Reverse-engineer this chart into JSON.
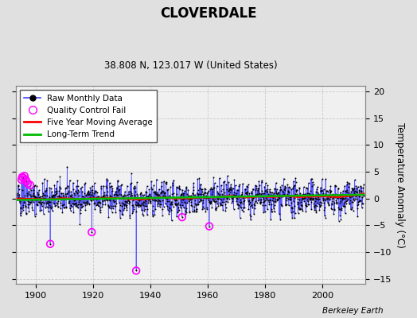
{
  "title": "CLOVERDALE",
  "subtitle": "38.808 N, 123.017 W (United States)",
  "ylabel": "Temperature Anomaly (°C)",
  "credit": "Berkeley Earth",
  "ylim": [
    -16,
    21
  ],
  "xlim": [
    1893,
    2015
  ],
  "yticks": [
    -15,
    -10,
    -5,
    0,
    5,
    10,
    15,
    20
  ],
  "xticks": [
    1900,
    1920,
    1940,
    1960,
    1980,
    2000
  ],
  "bg_color": "#f0f0f0",
  "grid_color": "#c8c8c8",
  "fig_color": "#e0e0e0",
  "raw_line_color": "#4444ff",
  "raw_dot_color": "#000000",
  "moving_avg_color": "#ff0000",
  "trend_color": "#00bb00",
  "qc_fail_color": "#ff00ff",
  "seed": 42,
  "n_months": 1452,
  "start_year": 1893.5
}
